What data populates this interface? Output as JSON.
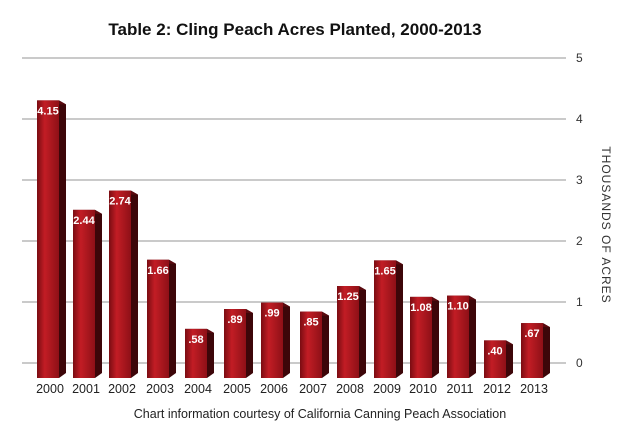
{
  "chart_data": {
    "type": "bar",
    "title": "Table 2: Cling Peach Acres Planted, 2000-2013",
    "xlabel": "",
    "ylabel": "THOUSANDS OF ACRES",
    "ylim": [
      0,
      5
    ],
    "yticks": [
      "0",
      "1",
      "2",
      "3",
      "4",
      "5"
    ],
    "categories": [
      "2000",
      "2001",
      "2002",
      "2003",
      "2004",
      "2005",
      "2006",
      "2007",
      "2008",
      "2009",
      "2010",
      "2011",
      "2012",
      "2013"
    ],
    "values": [
      4.15,
      2.44,
      2.74,
      1.66,
      0.58,
      0.89,
      0.99,
      0.85,
      1.25,
      1.65,
      1.08,
      1.1,
      0.4,
      0.67
    ],
    "data_labels": [
      "4.15",
      "2.44",
      "2.74",
      "1.66",
      ".58",
      ".89",
      ".99",
      ".85",
      "1.25",
      "1.65",
      "1.08",
      "1.10",
      ".40",
      ".67"
    ],
    "grid": true,
    "bar_color": "#a3141c",
    "caption": "Chart information courtesy of California Canning Peach Association"
  }
}
